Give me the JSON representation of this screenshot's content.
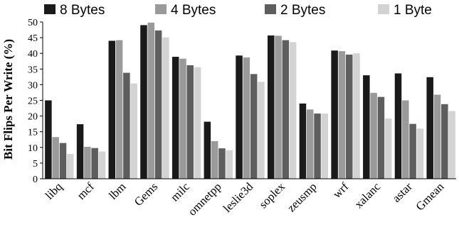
{
  "chart_data": {
    "type": "bar",
    "title": "",
    "xlabel": "",
    "ylabel": "Bit Flips Per Write (%)",
    "ylim": [
      0,
      50
    ],
    "yticks": [
      0,
      5,
      10,
      15,
      20,
      25,
      30,
      35,
      40,
      45,
      50
    ],
    "grid": false,
    "legend_position": "top",
    "categories": [
      "libq",
      "mcf",
      "lbm",
      "Gems",
      "milc",
      "omnetpp",
      "leslie3d",
      "soplex",
      "zeusmp",
      "wrf",
      "xalanc",
      "astar",
      "Gmean"
    ],
    "series": [
      {
        "name": "8 Bytes",
        "color": "#1a1a1a",
        "values": [
          25.0,
          17.4,
          44.0,
          49.0,
          38.9,
          18.2,
          39.3,
          45.7,
          24.0,
          40.9,
          33.0,
          33.6,
          32.4
        ]
      },
      {
        "name": "4 Bytes",
        "color": "#9a9a9a",
        "values": [
          13.3,
          10.2,
          44.2,
          49.8,
          38.3,
          12.0,
          38.7,
          45.6,
          22.1,
          40.7,
          27.4,
          25.0,
          26.8
        ]
      },
      {
        "name": "2 Bytes",
        "color": "#5e5e5e",
        "values": [
          11.4,
          9.8,
          33.8,
          47.3,
          36.2,
          9.7,
          33.4,
          44.2,
          20.8,
          39.6,
          26.1,
          17.5,
          23.8
        ]
      },
      {
        "name": "1 Byte",
        "color": "#d3d3d3",
        "values": [
          7.9,
          8.7,
          30.4,
          45.1,
          35.6,
          9.1,
          30.9,
          43.6,
          20.8,
          40.0,
          19.2,
          16.0,
          21.6
        ]
      }
    ]
  }
}
